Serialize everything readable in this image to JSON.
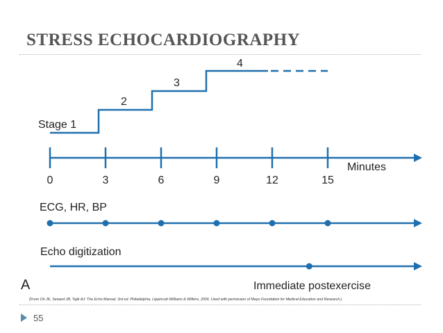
{
  "slide": {
    "title": "STRESS ECHOCARDIOGRAPHY",
    "page_number": "55"
  },
  "diagram": {
    "stage_labels": [
      "Stage 1",
      "2",
      "3",
      "4"
    ],
    "axis": {
      "ticks": [
        "0",
        "3",
        "6",
        "9",
        "12",
        "15"
      ],
      "unit_label": "Minutes"
    },
    "tracks": [
      {
        "label": "ECG, HR, BP",
        "dots_at_minutes": [
          0,
          3,
          6,
          9,
          12,
          15
        ]
      },
      {
        "label": "Echo digitization",
        "dots_at_minutes": [
          14
        ]
      }
    ],
    "panel_letter": "A",
    "annotation": "Immediate postexercise",
    "citation": "(From Oh JK, Seward JB, Tajik AJ: The Echo Manual. 3rd ed. Philadelphia, Lippincott Williams & Wilkins, 2006. Used with permission of Mayo Foundation for Medical Education and Research.)",
    "color": "#1f6fae"
  }
}
